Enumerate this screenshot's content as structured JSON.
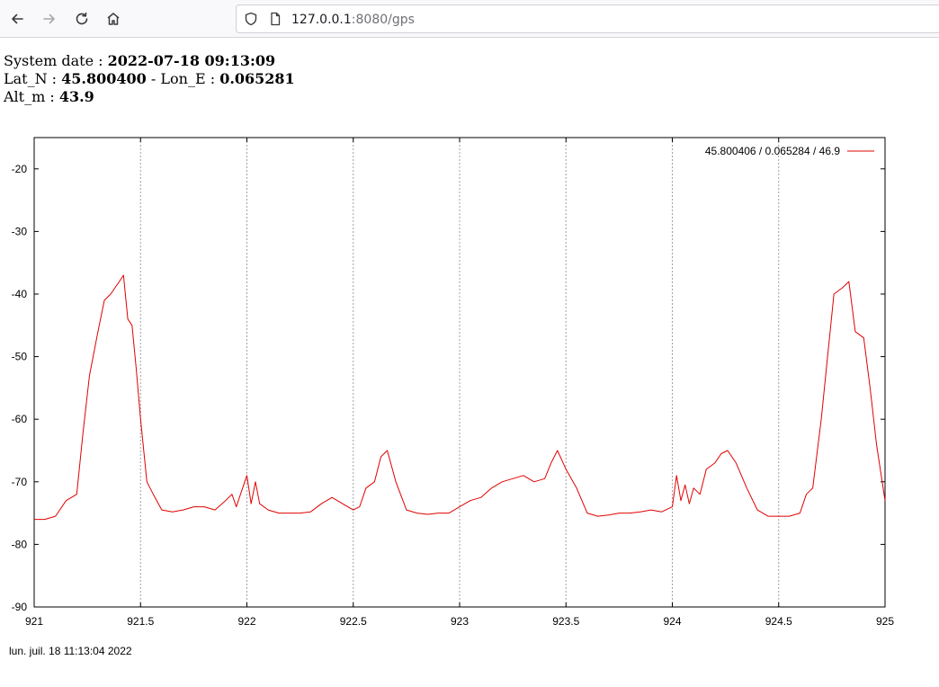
{
  "browser": {
    "url_host": "127.0.0.1",
    "url_rest": ":8080/gps",
    "icons": [
      "back-arrow-icon",
      "forward-arrow-icon",
      "reload-icon",
      "home-icon",
      "shield-icon",
      "page-icon"
    ]
  },
  "info": {
    "date_label": "System date : ",
    "date_value": "2022-07-18 09:13:09",
    "lat_label": "Lat_N : ",
    "lat_value": "45.800400",
    "sep": " - ",
    "lon_label": "Lon_E : ",
    "lon_value": "0.065281",
    "alt_label": "Alt_m : ",
    "alt_value": "43.9"
  },
  "chart_data": {
    "type": "line",
    "title": "",
    "xlabel": "",
    "ylabel": "",
    "xlim": [
      921,
      925
    ],
    "ylim": [
      -90,
      -15
    ],
    "xticks": [
      "921",
      "921.5",
      "922",
      "922.5",
      "923",
      "923.5",
      "924",
      "924.5",
      "925"
    ],
    "yticks": [
      "-20",
      "-30",
      "-40",
      "-50",
      "-60",
      "-70",
      "-80",
      "-90"
    ],
    "grid": "vertical dotted",
    "legend_position": "top-right",
    "series": [
      {
        "name": "45.800406 / 0.065284 / 46.9",
        "color": "#e00000",
        "x": [
          921.0,
          921.05,
          921.1,
          921.15,
          921.2,
          921.23,
          921.26,
          921.3,
          921.33,
          921.36,
          921.4,
          921.42,
          921.44,
          921.46,
          921.48,
          921.5,
          921.53,
          921.56,
          921.6,
          921.65,
          921.7,
          921.75,
          921.8,
          921.85,
          921.9,
          921.93,
          921.95,
          921.97,
          922.0,
          922.02,
          922.04,
          922.06,
          922.1,
          922.15,
          922.2,
          922.25,
          922.3,
          922.35,
          922.4,
          922.45,
          922.5,
          922.53,
          922.56,
          922.6,
          922.63,
          922.66,
          922.7,
          922.75,
          922.8,
          922.85,
          922.9,
          922.95,
          923.0,
          923.05,
          923.1,
          923.15,
          923.2,
          923.25,
          923.3,
          923.35,
          923.4,
          923.43,
          923.46,
          923.5,
          923.55,
          923.6,
          923.65,
          923.7,
          923.75,
          923.8,
          923.85,
          923.9,
          923.95,
          924.0,
          924.02,
          924.04,
          924.06,
          924.08,
          924.1,
          924.13,
          924.16,
          924.2,
          924.23,
          924.26,
          924.3,
          924.35,
          924.4,
          924.45,
          924.5,
          924.55,
          924.6,
          924.63,
          924.66,
          924.7,
          924.73,
          924.76,
          924.8,
          924.83,
          924.86,
          924.9,
          924.93,
          924.96,
          925.0
        ],
        "y": [
          -76,
          -76,
          -75.5,
          -73,
          -72,
          -62,
          -53,
          -46,
          -41,
          -40,
          -38,
          -37,
          -44,
          -45,
          -52,
          -60,
          -70,
          -72,
          -74.5,
          -74.8,
          -74.5,
          -74,
          -74,
          -74.5,
          -73,
          -72,
          -74,
          -72,
          -69,
          -73.5,
          -70,
          -73.5,
          -74.5,
          -75,
          -75,
          -75,
          -74.8,
          -73.5,
          -72.5,
          -73.5,
          -74.5,
          -74,
          -71,
          -70,
          -66,
          -65,
          -70,
          -74.5,
          -75,
          -75.2,
          -75,
          -75,
          -74,
          -73,
          -72.5,
          -71,
          -70,
          -69.5,
          -69,
          -70,
          -69.5,
          -67,
          -65,
          -68,
          -71,
          -75,
          -75.5,
          -75.3,
          -75,
          -75,
          -74.8,
          -74.5,
          -74.8,
          -74,
          -69,
          -73,
          -70.5,
          -73.5,
          -71,
          -72,
          -68,
          -67,
          -65.5,
          -65,
          -67,
          -71,
          -74.5,
          -75.5,
          -75.5,
          -75.5,
          -75,
          -72,
          -71,
          -60,
          -50,
          -40,
          -39,
          -38,
          -46,
          -47,
          -55,
          -64,
          -73
        ]
      }
    ]
  },
  "footer": {
    "timestamp": "lun. juil. 18 11:13:04 2022"
  }
}
